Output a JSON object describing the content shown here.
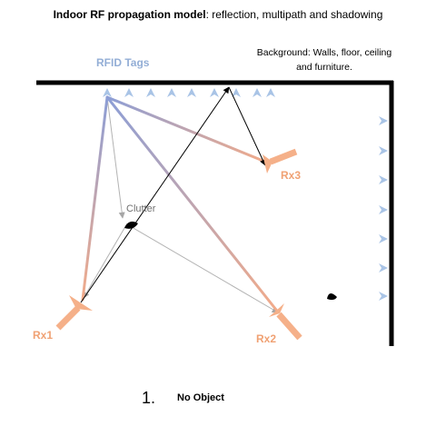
{
  "title": {
    "bold": "Indoor RF propagation model",
    "rest": ": reflection, multipath and shadowing"
  },
  "background_note": "Background: Walls, floor, ceiling and furniture.",
  "tags_label": "RFID Tags",
  "clutter_label": "Clutter",
  "receivers": {
    "rx1": "Rx1",
    "rx2": "Rx2",
    "rx3": "Rx3"
  },
  "scenario_number": "1.",
  "scenario_caption": "No Object",
  "colors": {
    "tag": "#a9c4e6",
    "tag_label": "#93aed6",
    "receiver": "#f5b089",
    "receiver_label": "#f0a173",
    "path_blue": "#8c9ed6",
    "path_orange": "#f2ab8a",
    "multipath": "#b3b3b3",
    "direct": "#000000",
    "wall": "#000000"
  }
}
